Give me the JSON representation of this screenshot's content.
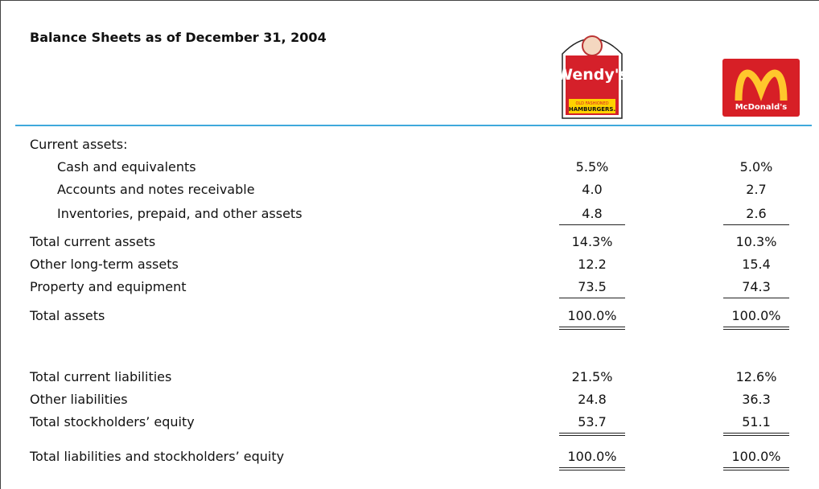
{
  "title": "Balance Sheets as of December 31, 2004",
  "logos": [
    {
      "name": "Wendy's",
      "tagline_1": "OLD FASHIONED",
      "tagline_2": "HAMBURGERS."
    },
    {
      "name": "McDonald's"
    }
  ],
  "table": {
    "rows": [
      {
        "label": "Current assets:",
        "indent": false,
        "values": [
          null,
          null
        ],
        "underline": null
      },
      {
        "label": "Cash and equivalents",
        "indent": true,
        "values": [
          "5.5%",
          "5.0%"
        ],
        "underline": null
      },
      {
        "label": "Accounts and notes receivable",
        "indent": true,
        "values": [
          "4.0",
          "2.7"
        ],
        "underline": null
      },
      {
        "label": "Inventories, prepaid, and other assets",
        "indent": true,
        "values": [
          "4.8",
          "2.6"
        ],
        "underline": "single"
      },
      {
        "label": "Total current assets",
        "indent": false,
        "values": [
          "14.3%",
          "10.3%"
        ],
        "underline": null
      },
      {
        "label": "Other long-term assets",
        "indent": false,
        "values": [
          "12.2",
          "15.4"
        ],
        "underline": null
      },
      {
        "label": "Property and equipment",
        "indent": false,
        "values": [
          "73.5",
          "74.3"
        ],
        "underline": "single"
      },
      {
        "label": "Total assets",
        "indent": false,
        "values": [
          "100.0%",
          "100.0%"
        ],
        "underline": "double"
      },
      {
        "label": "Total current liabilities",
        "indent": false,
        "values": [
          "21.5%",
          "12.6%"
        ],
        "underline": null
      },
      {
        "label": "Other liabilities",
        "indent": false,
        "values": [
          "24.8",
          "36.3"
        ],
        "underline": null
      },
      {
        "label": "Total stockholders’ equity",
        "indent": false,
        "values": [
          "53.7",
          "51.1"
        ],
        "underline": "double"
      },
      {
        "label": "Total liabilities and stockholders’ equity",
        "indent": false,
        "values": [
          "100.0%",
          "100.0%"
        ],
        "underline": "double"
      }
    ]
  }
}
